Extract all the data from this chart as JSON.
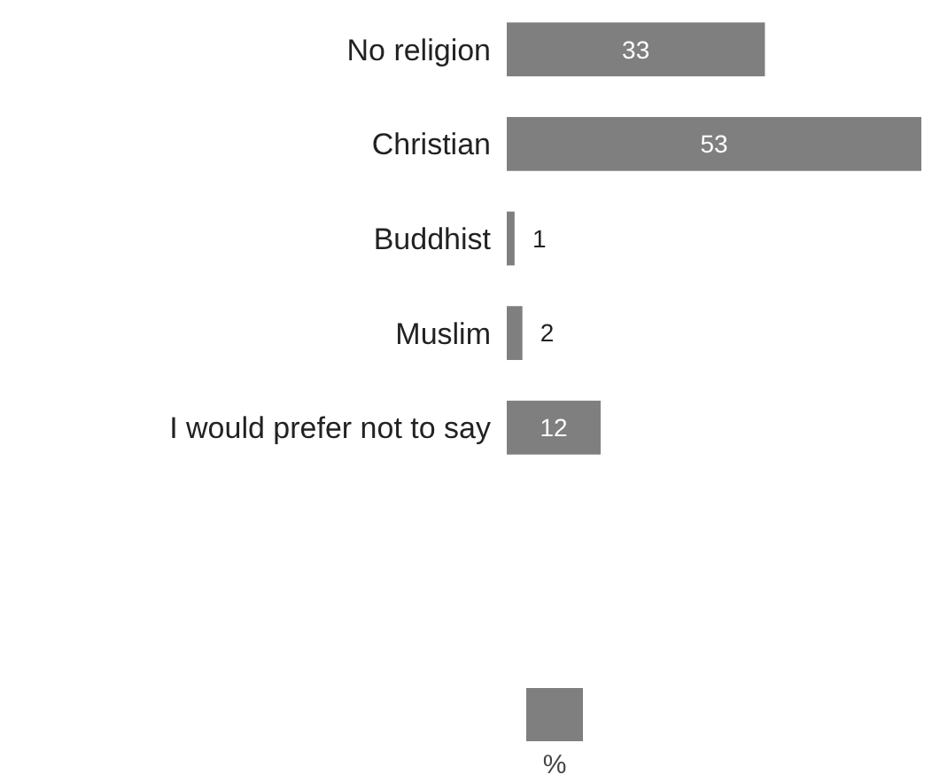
{
  "chart_data": {
    "type": "bar",
    "orientation": "horizontal",
    "categories": [
      "No religion",
      "Christian",
      "Buddhist",
      "Muslim",
      "I would prefer not to say"
    ],
    "series": [
      {
        "name": "%",
        "color": "#7f7f7f",
        "values": [
          33,
          53,
          1,
          2,
          12
        ]
      }
    ],
    "data_labels": true,
    "legend": "bottom"
  }
}
